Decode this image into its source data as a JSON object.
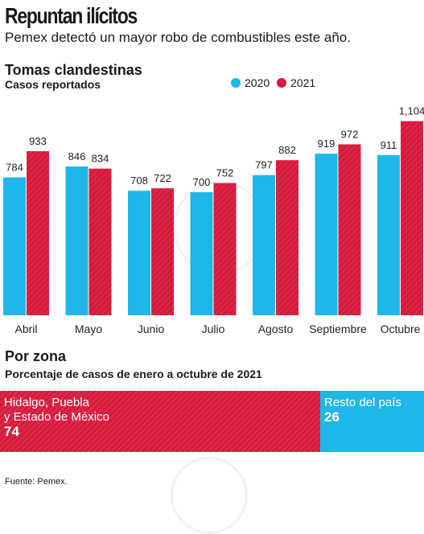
{
  "header": {
    "title": "Repuntan ilícitos",
    "subtitle": "Pemex detectó un mayor robo de combustibles este año."
  },
  "colors": {
    "series_2020": "#1fb6e8",
    "series_2021": "#d7193b"
  },
  "chart_data": [
    {
      "type": "bar",
      "title": "Tomas clandestinas",
      "subtitle": "Casos reportados",
      "categories": [
        "Abril",
        "Mayo",
        "Junio",
        "Julio",
        "Agosto",
        "Septiembre",
        "Octubre"
      ],
      "series": [
        {
          "name": "2020",
          "values": [
            784,
            846,
            708,
            700,
            797,
            919,
            911
          ],
          "labels": [
            "784",
            "846",
            "708",
            "700",
            "797",
            "919",
            "911"
          ]
        },
        {
          "name": "2021",
          "values": [
            933,
            834,
            722,
            752,
            882,
            972,
            1104
          ],
          "labels": [
            "933",
            "834",
            "722",
            "752",
            "882",
            "972",
            "1,104"
          ]
        }
      ],
      "ylim": [
        0,
        1180
      ],
      "grid": false,
      "legend": "top-right"
    },
    {
      "type": "bar",
      "title": "Por zona",
      "subtitle": "Porcentaje de casos de enero a octubre de 2021",
      "segments": [
        {
          "label_line1": "Hidalgo, Puebla",
          "label_line2": "y Estado de México",
          "value": 74
        },
        {
          "label_line1": "Resto del país",
          "value": 26
        }
      ]
    }
  ],
  "source": "Fuente: Pemex."
}
